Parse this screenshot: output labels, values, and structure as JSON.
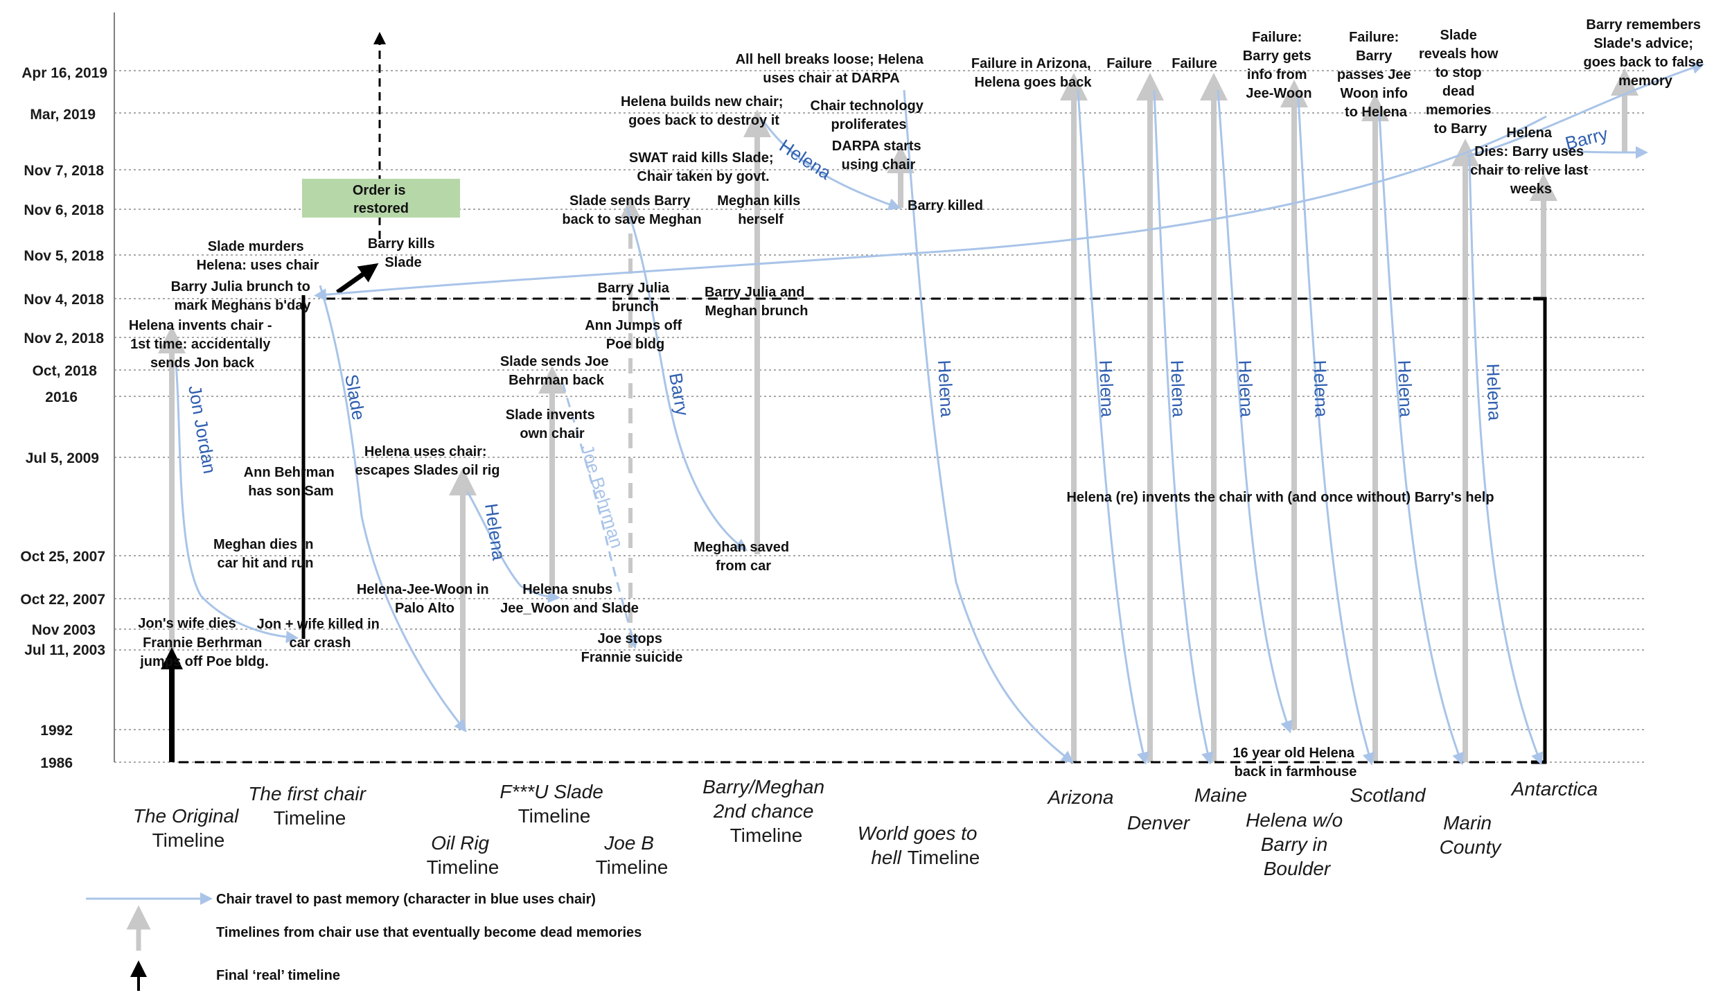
{
  "y_axis_labels": [
    "Apr 16, 2019",
    "Mar, 2019",
    "Nov 7, 2018",
    "Nov 6, 2018",
    "Nov 5, 2018",
    "Nov 4, 2018",
    "Nov 2, 2018",
    "Oct, 2018",
    "2016",
    "Jul 5, 2009",
    "Oct 25, 2007",
    "Oct 22, 2007",
    "Nov 2003",
    "Jul 11, 2003",
    "1992",
    "1986"
  ],
  "timelines": {
    "original": [
      "The Original",
      "Timeline"
    ],
    "first_chair": [
      "The first chair",
      "Timeline"
    ],
    "oil_rig": [
      "Oil Rig",
      "Timeline"
    ],
    "fu_slade": [
      "F***U Slade",
      "Timeline"
    ],
    "joe_b": [
      "Joe B",
      "Timeline"
    ],
    "barry_meghan": [
      "Barry/Meghan",
      "2nd chance",
      "Timeline"
    ],
    "world_hell": [
      "World goes to",
      "hell",
      "Timeline"
    ],
    "arizona": [
      "Arizona"
    ],
    "denver": [
      "Denver"
    ],
    "maine": [
      "Maine"
    ],
    "boulder": [
      "Helena w/o",
      "Barry in",
      "Boulder"
    ],
    "scotland": [
      "Scotland"
    ],
    "marin": [
      "Marin",
      "County"
    ],
    "antarctica": [
      "Antarctica"
    ]
  },
  "events": {
    "helena_invents": [
      "Helena invents chair -",
      "1st time: accidentally",
      "sends Jon back"
    ],
    "barry_julia_bday": [
      "Barry Julia brunch to",
      "mark Meghans b'day"
    ],
    "slade_murders": [
      "Slade murders",
      "Helena: uses chair"
    ],
    "order_restored": [
      "Order is",
      "restored"
    ],
    "barry_kills_slade": [
      "Barry kills",
      "Slade"
    ],
    "ann_son": [
      "Ann Behrman",
      "has son Sam"
    ],
    "meghan_dies": [
      "Meghan dies in",
      "car hit and run"
    ],
    "jon_wife_killed": [
      "Jon + wife killed in",
      "car crash"
    ],
    "jons_wife_dies": [
      "Jon's wife dies"
    ],
    "frannie": [
      "Frannie Berhrman",
      "jumps off Poe bldg."
    ],
    "helena_uses_chair": [
      "Helena uses chair:",
      "escapes Slades oil rig"
    ],
    "helena_jee_woon": [
      "Helena-Jee-Woon in",
      "Palo Alto"
    ],
    "slade_sends_joe": [
      "Slade sends Joe",
      "Behrman back"
    ],
    "slade_invents": [
      "Slade invents",
      "own chair"
    ],
    "helena_snubs": [
      "Helena snubs",
      "Jee_Woon and Slade"
    ],
    "joe_stops": [
      "Joe stops",
      "Frannie suicide"
    ],
    "barry_julia_brunch": [
      "Barry Julia",
      "brunch"
    ],
    "ann_jumps": [
      "Ann Jumps off",
      "Poe bldg"
    ],
    "slade_sends_barry": [
      "Slade sends Barry",
      "back to save Meghan"
    ],
    "swat_raid": [
      "SWAT raid kills Slade;",
      "Chair taken by govt."
    ],
    "helena_builds": [
      "Helena builds new chair;",
      "goes back to destroy it"
    ],
    "all_hell": [
      "All hell breaks loose; Helena",
      "uses chair at DARPA"
    ],
    "meghan_kills": [
      "Meghan kills",
      "herself"
    ],
    "barry_julia_meghan": [
      "Barry Julia and",
      "Meghan brunch"
    ],
    "meghan_saved": [
      "Meghan saved",
      "from car"
    ],
    "chair_tech": [
      "Chair technology",
      "proliferates"
    ],
    "darpa": [
      "DARPA starts",
      "using chair"
    ],
    "barry_killed": [
      "Barry killed"
    ],
    "failure_arizona": [
      "Failure in Arizona,",
      "Helena goes back"
    ],
    "failure_denver": [
      "Failure"
    ],
    "failure_maine": [
      "Failure"
    ],
    "failure_boulder": [
      "Failure:",
      "Barry gets",
      "info from",
      "Jee-Woon"
    ],
    "failure_scotland": [
      "Failure:",
      "Barry",
      "passes Jee",
      "Woon info",
      "to Helena"
    ],
    "slade_reveals": [
      "Slade",
      "reveals how",
      "to stop",
      "dead",
      "memories",
      "to Barry"
    ],
    "helena_dies": [
      "Helena",
      "Dies: Barry uses",
      "chair to relive last",
      "weeks"
    ],
    "barry_remembers": [
      "Barry remembers",
      "Slade's advice;",
      "goes back to false",
      "memory"
    ],
    "helena_reinvents": [
      "Helena (re) invents the chair with (and once without) Barry's help"
    ],
    "helena_16": [
      "16 year old Helena",
      "back in farmhouse"
    ]
  },
  "path_labels": {
    "jon_jordan": "Jon Jordan",
    "slade": "Slade",
    "helena": "Helena",
    "joe_behrman": "Joe Behrman",
    "barry": "Barry"
  },
  "legend": {
    "blue": "Chair travel to past memory (character in blue uses chair)",
    "gray": "Timelines from chair use that eventually become dead memories",
    "black": "Final ‘real’ timeline"
  },
  "colors": {
    "blue": "#a9c4e8",
    "blue_text": "#2f5fb0",
    "gray": "#c8c8c8",
    "black": "#000000",
    "green_box": "#b6d7a8"
  }
}
